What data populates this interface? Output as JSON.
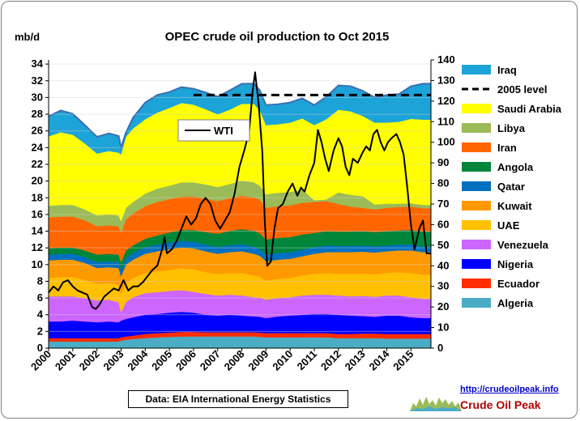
{
  "chart_data": {
    "type": "area",
    "title": "OPEC crude oil production to Oct 2015",
    "ylabel": "mb/d",
    "ylim": [
      0,
      34.5
    ],
    "y2lim": [
      0,
      140
    ],
    "yticks": [
      "0",
      "2",
      "4",
      "6",
      "8",
      "10",
      "12",
      "14",
      "16",
      "18",
      "20",
      "22",
      "24",
      "26",
      "28",
      "30",
      "32",
      "34"
    ],
    "y2ticks": [
      "0",
      "10",
      "20",
      "30",
      "40",
      "50",
      "60",
      "70",
      "80",
      "90",
      "100",
      "110",
      "120",
      "130",
      "140"
    ],
    "xticks": [
      "2000",
      "2001",
      "2002",
      "2003",
      "2004",
      "2005",
      "2006",
      "2007",
      "2008",
      "2009",
      "2010",
      "2011",
      "2012",
      "2013",
      "2014",
      "2015"
    ],
    "x_start": 2000,
    "x_end": 2015.83,
    "level_2005": 30.3,
    "level_2005_start": 2006.0,
    "source": "Data: EIA International Energy Statistics",
    "site_url": "http://crudeoilpeak.info",
    "site_name": "Crude Oil Peak",
    "x": [
      2000,
      2000.5,
      2001,
      2001.5,
      2002,
      2002.5,
      2002.9,
      2003,
      2003.2,
      2003.5,
      2004,
      2004.5,
      2005,
      2005.5,
      2006,
      2006.5,
      2007,
      2007.5,
      2008,
      2008.5,
      2008.75,
      2009,
      2009.5,
      2010,
      2010.5,
      2011,
      2011.5,
      2012,
      2012.5,
      2013,
      2013.5,
      2014,
      2014.5,
      2015,
      2015.5,
      2015.83
    ],
    "series": [
      {
        "name": "Algeria",
        "color": "#4bacc6",
        "values": [
          0.8,
          0.8,
          0.8,
          0.8,
          0.8,
          0.8,
          0.8,
          0.9,
          1.0,
          1.1,
          1.2,
          1.3,
          1.35,
          1.4,
          1.4,
          1.4,
          1.4,
          1.4,
          1.4,
          1.4,
          1.35,
          1.3,
          1.3,
          1.3,
          1.3,
          1.3,
          1.3,
          1.2,
          1.2,
          1.2,
          1.2,
          1.15,
          1.15,
          1.15,
          1.15,
          1.15
        ]
      },
      {
        "name": "Ecuador",
        "color": "#ff2d00",
        "values": [
          0.4,
          0.4,
          0.4,
          0.4,
          0.4,
          0.4,
          0.4,
          0.4,
          0.4,
          0.4,
          0.5,
          0.5,
          0.5,
          0.55,
          0.55,
          0.5,
          0.5,
          0.5,
          0.5,
          0.5,
          0.5,
          0.5,
          0.5,
          0.5,
          0.5,
          0.5,
          0.5,
          0.5,
          0.5,
          0.55,
          0.55,
          0.55,
          0.55,
          0.55,
          0.55,
          0.55
        ]
      },
      {
        "name": "Nigeria",
        "color": "#0000ff",
        "values": [
          2.0,
          2.0,
          2.1,
          2.0,
          1.9,
          2.0,
          1.9,
          2.0,
          2.1,
          2.2,
          2.3,
          2.3,
          2.4,
          2.4,
          2.3,
          2.1,
          2.0,
          2.1,
          2.0,
          1.9,
          1.9,
          1.8,
          2.0,
          2.1,
          2.2,
          2.3,
          2.3,
          2.3,
          2.2,
          2.1,
          2.0,
          2.2,
          2.2,
          2.0,
          1.9,
          1.9
        ]
      },
      {
        "name": "Venezuela",
        "color": "#cc66ff",
        "values": [
          3.0,
          3.0,
          2.9,
          2.8,
          2.6,
          2.6,
          2.4,
          1.0,
          2.0,
          2.4,
          2.6,
          2.6,
          2.6,
          2.6,
          2.5,
          2.5,
          2.4,
          2.4,
          2.4,
          2.3,
          2.3,
          2.2,
          2.2,
          2.2,
          2.3,
          2.3,
          2.3,
          2.3,
          2.3,
          2.4,
          2.4,
          2.4,
          2.4,
          2.4,
          2.3,
          2.3
        ]
      },
      {
        "name": "UAE",
        "color": "#ffc000",
        "values": [
          2.2,
          2.3,
          2.3,
          2.2,
          2.0,
          2.0,
          2.1,
          2.2,
          2.3,
          2.3,
          2.4,
          2.5,
          2.5,
          2.6,
          2.7,
          2.6,
          2.6,
          2.6,
          2.7,
          2.6,
          2.5,
          2.3,
          2.3,
          2.3,
          2.4,
          2.5,
          2.6,
          2.6,
          2.7,
          2.7,
          2.7,
          2.7,
          2.8,
          2.9,
          2.9,
          2.9
        ]
      },
      {
        "name": "Kuwait",
        "color": "#ff9900",
        "values": [
          2.1,
          2.1,
          2.1,
          2.0,
          1.9,
          1.9,
          2.0,
          2.1,
          2.2,
          2.2,
          2.3,
          2.4,
          2.5,
          2.5,
          2.5,
          2.5,
          2.4,
          2.5,
          2.6,
          2.6,
          2.5,
          2.3,
          2.3,
          2.3,
          2.3,
          2.4,
          2.5,
          2.6,
          2.6,
          2.6,
          2.6,
          2.6,
          2.6,
          2.7,
          2.7,
          2.7
        ]
      },
      {
        "name": "Qatar",
        "color": "#0070c0",
        "values": [
          0.7,
          0.7,
          0.7,
          0.7,
          0.7,
          0.7,
          0.7,
          0.8,
          0.8,
          0.8,
          0.8,
          0.8,
          0.8,
          0.8,
          0.8,
          0.8,
          0.8,
          0.85,
          0.85,
          0.85,
          0.8,
          0.8,
          0.8,
          0.8,
          0.8,
          0.8,
          0.8,
          0.75,
          0.75,
          0.75,
          0.75,
          0.7,
          0.7,
          0.7,
          0.65,
          0.65
        ]
      },
      {
        "name": "Angola",
        "color": "#00863a",
        "values": [
          0.75,
          0.75,
          0.75,
          0.8,
          0.9,
          0.9,
          0.9,
          0.9,
          0.9,
          0.9,
          1.0,
          1.1,
          1.2,
          1.3,
          1.4,
          1.5,
          1.6,
          1.7,
          1.8,
          1.9,
          1.9,
          1.8,
          1.8,
          1.8,
          1.8,
          1.7,
          1.7,
          1.7,
          1.7,
          1.7,
          1.7,
          1.7,
          1.7,
          1.75,
          1.8,
          1.8
        ]
      },
      {
        "name": "Iran",
        "color": "#ff6600",
        "values": [
          3.7,
          3.7,
          3.7,
          3.6,
          3.4,
          3.4,
          3.4,
          3.5,
          3.7,
          3.8,
          3.9,
          4.0,
          4.0,
          4.0,
          4.0,
          4.0,
          3.9,
          3.9,
          4.0,
          4.0,
          4.0,
          3.8,
          3.8,
          3.8,
          3.8,
          3.7,
          3.6,
          3.3,
          3.0,
          2.8,
          2.7,
          2.8,
          2.8,
          2.8,
          2.8,
          2.8
        ]
      },
      {
        "name": "Libya",
        "color": "#9bbb59",
        "values": [
          1.4,
          1.4,
          1.4,
          1.3,
          1.3,
          1.3,
          1.3,
          1.4,
          1.4,
          1.4,
          1.5,
          1.6,
          1.6,
          1.7,
          1.7,
          1.7,
          1.7,
          1.7,
          1.8,
          1.8,
          1.7,
          1.6,
          1.6,
          1.6,
          1.6,
          0.2,
          0.2,
          1.4,
          1.4,
          1.4,
          0.6,
          0.5,
          0.4,
          0.4,
          0.4,
          0.4
        ]
      },
      {
        "name": "Saudi Arabia",
        "color": "#ffff00",
        "values": [
          8.3,
          8.7,
          8.4,
          7.9,
          7.4,
          7.6,
          7.5,
          8.0,
          8.5,
          8.8,
          8.9,
          9.1,
          9.3,
          9.5,
          9.3,
          9.0,
          8.7,
          8.9,
          9.2,
          9.4,
          9.0,
          8.3,
          8.2,
          8.3,
          8.5,
          9.0,
          9.6,
          9.9,
          10.0,
          9.6,
          9.8,
          9.7,
          9.8,
          10.1,
          10.2,
          10.2
        ]
      },
      {
        "name": "Iraq",
        "color": "#1ca3d8",
        "values": [
          2.4,
          2.6,
          2.5,
          2.2,
          2.0,
          2.1,
          2.0,
          0.8,
          0.5,
          1.3,
          2.0,
          2.1,
          1.9,
          1.9,
          1.9,
          2.0,
          2.1,
          2.3,
          2.4,
          2.4,
          2.4,
          2.4,
          2.4,
          2.4,
          2.4,
          2.4,
          2.7,
          2.9,
          3.0,
          3.0,
          3.0,
          3.3,
          3.3,
          3.9,
          4.3,
          4.3
        ]
      }
    ],
    "wti": {
      "name": "WTI",
      "axis": "right",
      "color": "#000000",
      "x": [
        2000,
        2000.2,
        2000.4,
        2000.6,
        2000.8,
        2001,
        2001.2,
        2001.4,
        2001.6,
        2001.8,
        2001.95,
        2002.1,
        2002.3,
        2002.5,
        2002.7,
        2002.9,
        2003.1,
        2003.3,
        2003.5,
        2003.7,
        2003.9,
        2004.1,
        2004.3,
        2004.5,
        2004.7,
        2004.8,
        2004.9,
        2005.1,
        2005.3,
        2005.5,
        2005.7,
        2005.9,
        2006.1,
        2006.3,
        2006.5,
        2006.7,
        2006.9,
        2007.1,
        2007.3,
        2007.5,
        2007.7,
        2007.9,
        2008.1,
        2008.3,
        2008.45,
        2008.55,
        2008.7,
        2008.85,
        2008.95,
        2009.05,
        2009.2,
        2009.35,
        2009.5,
        2009.7,
        2009.9,
        2010.1,
        2010.3,
        2010.45,
        2010.6,
        2010.8,
        2011.0,
        2011.15,
        2011.3,
        2011.45,
        2011.6,
        2011.8,
        2012.0,
        2012.15,
        2012.3,
        2012.45,
        2012.6,
        2012.8,
        2013.0,
        2013.15,
        2013.3,
        2013.45,
        2013.6,
        2013.75,
        2013.9,
        2014.05,
        2014.2,
        2014.4,
        2014.55,
        2014.7,
        2014.85,
        2015.0,
        2015.15,
        2015.35,
        2015.5,
        2015.65,
        2015.83
      ],
      "values": [
        27,
        30,
        28,
        32,
        33,
        30,
        28,
        27,
        26,
        20,
        19,
        21,
        25,
        27,
        29,
        28,
        33,
        28,
        30,
        30,
        32,
        35,
        38,
        40,
        48,
        54,
        46,
        48,
        52,
        58,
        64,
        60,
        63,
        70,
        73,
        70,
        62,
        58,
        62,
        66,
        75,
        88,
        96,
        105,
        125,
        134,
        118,
        95,
        62,
        40,
        42,
        58,
        68,
        70,
        76,
        80,
        74,
        78,
        76,
        84,
        90,
        106,
        100,
        92,
        86,
        96,
        102,
        98,
        88,
        84,
        92,
        90,
        95,
        98,
        96,
        104,
        106,
        100,
        96,
        100,
        102,
        104,
        100,
        94,
        78,
        60,
        48,
        58,
        62,
        46,
        46
      ]
    }
  }
}
